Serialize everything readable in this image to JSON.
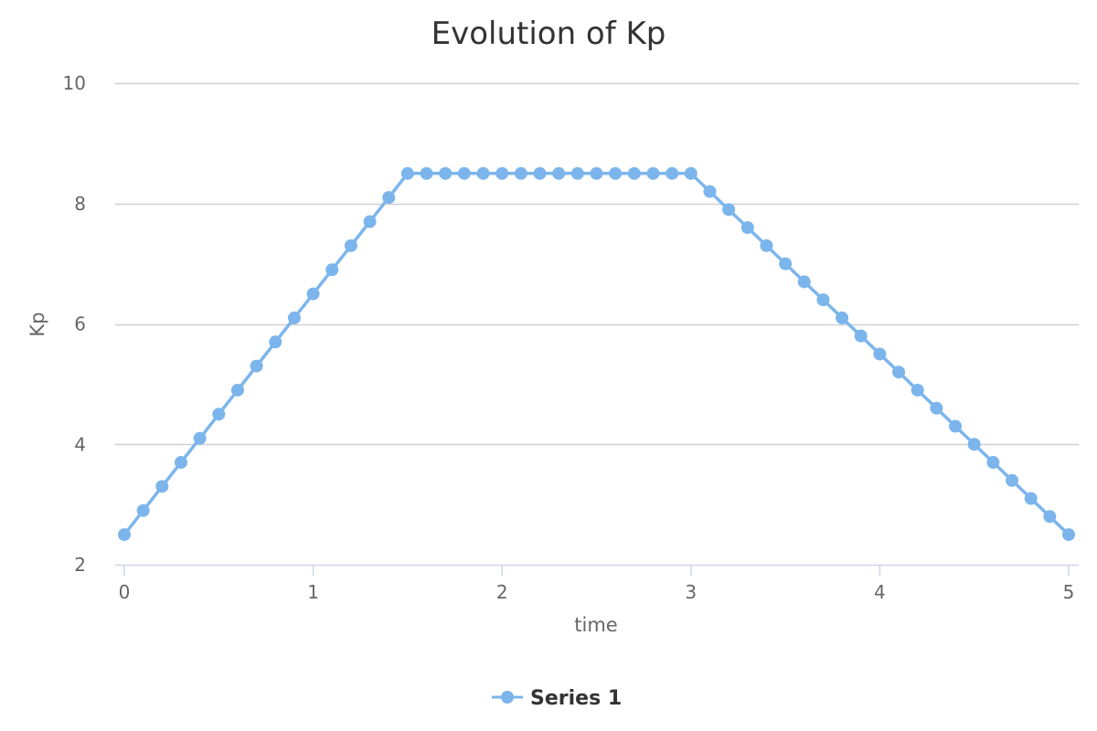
{
  "chart_data": {
    "type": "line",
    "title": "Evolution of Kp",
    "xlabel": "time",
    "ylabel": "Kp",
    "xlim": [
      0,
      5
    ],
    "ylim": [
      2,
      10
    ],
    "x_ticks": [
      0,
      1,
      2,
      3,
      4,
      5
    ],
    "y_ticks": [
      2,
      4,
      6,
      8,
      10
    ],
    "grid": "horizontal",
    "legend_position": "bottom-center",
    "color": "#7cb5ec",
    "series": [
      {
        "name": "Series 1",
        "x": [
          0,
          0.1,
          0.2,
          0.3,
          0.4,
          0.5,
          0.6,
          0.7,
          0.8,
          0.9,
          1.0,
          1.1,
          1.2,
          1.3,
          1.4,
          1.5,
          1.6,
          1.7,
          1.8,
          1.9,
          2.0,
          2.1,
          2.2,
          2.3,
          2.4,
          2.5,
          2.6,
          2.7,
          2.8,
          2.9,
          3.0,
          3.1,
          3.2,
          3.3,
          3.4,
          3.5,
          3.6,
          3.7,
          3.8,
          3.9,
          4.0,
          4.1,
          4.2,
          4.3,
          4.4,
          4.5,
          4.6,
          4.7,
          4.8,
          4.9,
          5.0
        ],
        "values": [
          2.5,
          2.9,
          3.3,
          3.7,
          4.1,
          4.5,
          4.9,
          5.3,
          5.7,
          6.1,
          6.5,
          6.9,
          7.3,
          7.7,
          8.1,
          8.5,
          8.5,
          8.5,
          8.5,
          8.5,
          8.5,
          8.5,
          8.5,
          8.5,
          8.5,
          8.5,
          8.5,
          8.5,
          8.5,
          8.5,
          8.5,
          8.2,
          7.9,
          7.6,
          7.3,
          7.0,
          6.7,
          6.4,
          6.1,
          5.8,
          5.5,
          5.2,
          4.9,
          4.6,
          4.3,
          4.0,
          3.7,
          3.4,
          3.1,
          2.8,
          2.5
        ]
      }
    ]
  }
}
